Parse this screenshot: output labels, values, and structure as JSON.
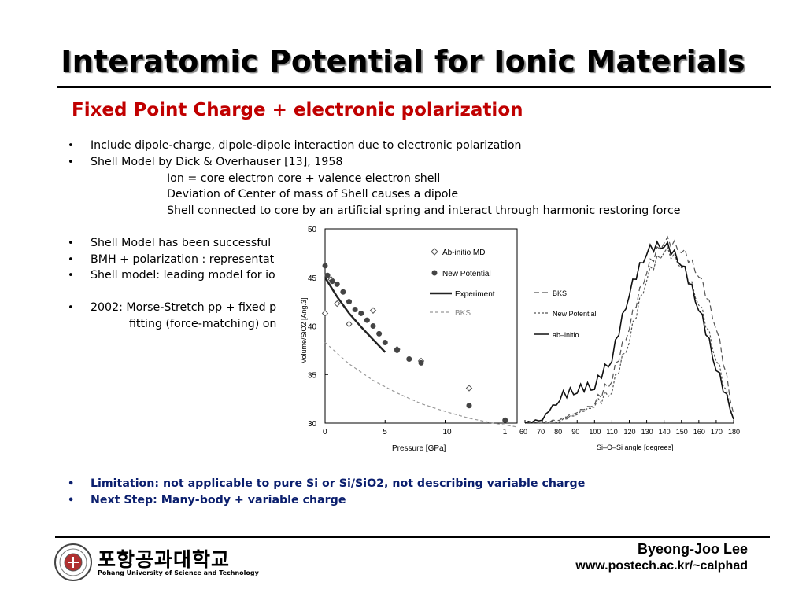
{
  "slide": {
    "title": "Interatomic Potential for Ionic Materials",
    "subtitle": "Fixed Point Charge + electronic polarization"
  },
  "bullets": {
    "b1": "Include dipole-charge, dipole-dipole interaction due to electronic polarization",
    "b2": "Shell Model by Dick & Overhauser [13], 1958",
    "b2_sub1": "Ion = core electron core + valence electron shell",
    "b2_sub2": "Deviation of Center of mass of Shell causes a dipole",
    "b2_sub3": "Shell connected to core by an artificial spring and interact through harmonic restoring force",
    "b3": "Shell Model has been successful",
    "b4": "BMH + polarization : representat",
    "b5": "Shell model: leading model for io",
    "b6": "2002: Morse-Stretch pp + fixed p",
    "b6_sub": "fitting (force-matching) on",
    "b7": "Limitation: not applicable to pure Si or Si/SiO2, not describing variable charge",
    "b8": "Next Step: Many-body + variable charge"
  },
  "footer": {
    "author": "Byeong-Joo Lee",
    "url": "www.postech.ac.kr/~calphad",
    "logo_kr": "포항공과대학교",
    "logo_en": "Pohang University of Science and Technology"
  },
  "colors": {
    "title_accent": "#c00000",
    "highlight_text": "#0b1f6e"
  },
  "chart_data": [
    {
      "type": "scatter",
      "xlabel": "Pressure [GPa]",
      "ylabel": "Volume/SiO2 [Ang.3]",
      "xlim": [
        0,
        16
      ],
      "ylim": [
        30,
        50
      ],
      "x_ticks": [
        "0",
        "5",
        "10",
        "1"
      ],
      "y_ticks": [
        "30",
        "35",
        "40",
        "45",
        "50"
      ],
      "legend": [
        "Ab-initio MD",
        "New Potential",
        "Experiment",
        "BKS"
      ],
      "series": [
        {
          "name": "Ab-initio MD",
          "marker": "open-diamond",
          "x": [
            0,
            0.5,
            1,
            2,
            4,
            6,
            8,
            12
          ],
          "y": [
            41.3,
            44.8,
            42.3,
            40.2,
            41.6,
            37.6,
            36.4,
            33.6
          ]
        },
        {
          "name": "New Potential",
          "marker": "filled-circle",
          "x": [
            0,
            0.2,
            0.6,
            1,
            1.5,
            2,
            2.5,
            3,
            3.5,
            4,
            4.5,
            5,
            6,
            7,
            8,
            12,
            15
          ],
          "y": [
            46.2,
            45.2,
            44.6,
            44.3,
            43.5,
            42.5,
            41.7,
            41.3,
            40.6,
            40.0,
            39.2,
            38.3,
            37.5,
            36.6,
            36.2,
            31.8,
            30.3
          ]
        },
        {
          "name": "Experiment",
          "style": "solid",
          "x": [
            0,
            1,
            2,
            3,
            4,
            5
          ],
          "y": [
            45.0,
            43.0,
            41.3,
            39.9,
            38.6,
            37.3
          ]
        },
        {
          "name": "BKS",
          "style": "dashed",
          "x": [
            0,
            2,
            4,
            6,
            8,
            10,
            12,
            14,
            16
          ],
          "y": [
            38.3,
            36.1,
            34.4,
            33.1,
            32.0,
            31.2,
            30.5,
            30.0,
            29.6
          ]
        }
      ]
    },
    {
      "type": "line",
      "xlabel": "Si–O–Si angle [degrees]",
      "x_ticks": [
        "60",
        "70",
        "80",
        "90",
        "100",
        "110",
        "120",
        "130",
        "140",
        "150",
        "160",
        "170",
        "180"
      ],
      "xlim": [
        60,
        180
      ],
      "legend": [
        "BKS",
        "New Potential",
        "ab–initio"
      ],
      "series": [
        {
          "name": "BKS",
          "style": "long-dash",
          "x": [
            60,
            70,
            80,
            90,
            100,
            110,
            120,
            130,
            140,
            150,
            160,
            170,
            180
          ],
          "y": [
            0.0,
            0.0,
            0.02,
            0.06,
            0.1,
            0.24,
            0.52,
            0.82,
            0.98,
            0.93,
            0.8,
            0.52,
            0.05
          ]
        },
        {
          "name": "New Potential",
          "style": "short-dash",
          "x": [
            60,
            70,
            80,
            90,
            100,
            110,
            120,
            130,
            140,
            150,
            160,
            170,
            180
          ],
          "y": [
            0.0,
            0.0,
            0.01,
            0.05,
            0.09,
            0.18,
            0.45,
            0.78,
            0.93,
            0.85,
            0.65,
            0.35,
            0.02
          ]
        },
        {
          "name": "ab–initio",
          "style": "solid",
          "x": [
            60,
            70,
            80,
            90,
            100,
            110,
            120,
            130,
            140,
            150,
            160,
            170,
            180
          ],
          "y": [
            0.0,
            0.02,
            0.14,
            0.18,
            0.2,
            0.35,
            0.7,
            0.92,
            0.96,
            0.86,
            0.62,
            0.3,
            0.02
          ]
        }
      ]
    }
  ]
}
